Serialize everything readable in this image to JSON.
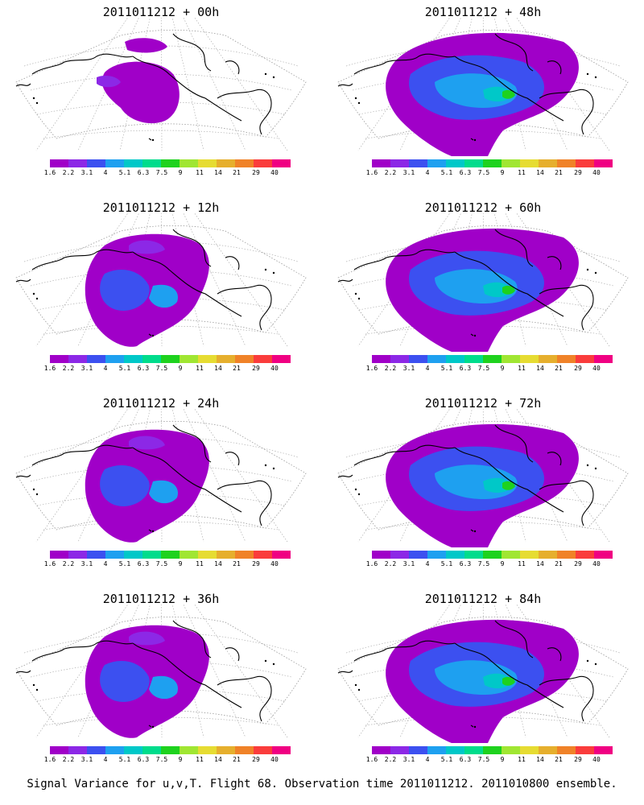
{
  "panels": [
    {
      "title": "2011011212 + 00h",
      "blob": "small"
    },
    {
      "title": "2011011212 + 48h",
      "blob": "large"
    },
    {
      "title": "2011011212 + 12h",
      "blob": "medium"
    },
    {
      "title": "2011011212 + 60h",
      "blob": "large"
    },
    {
      "title": "2011011212 + 24h",
      "blob": "medium"
    },
    {
      "title": "2011011212 + 72h",
      "blob": "large"
    },
    {
      "title": "2011011212 + 36h",
      "blob": "medium"
    },
    {
      "title": "2011011212 + 84h",
      "blob": "large"
    }
  ],
  "colorbar": {
    "colors": [
      "#a000c8",
      "#8c28e6",
      "#3c50f0",
      "#1ea0f0",
      "#00c8c8",
      "#00dc8c",
      "#1ed21e",
      "#a0e632",
      "#e6dc32",
      "#e6af2d",
      "#f08228",
      "#fa3c3c",
      "#f00082"
    ],
    "labels": [
      "1.6",
      "2.2",
      "3.1",
      "4",
      "5.1",
      "6.3",
      "7.5",
      "9",
      "11",
      "14",
      "21",
      "29",
      "40"
    ]
  },
  "caption": "Signal Variance for u,v,T. Flight 68. Observation time 2011011212. 2011010800 ensemble."
}
